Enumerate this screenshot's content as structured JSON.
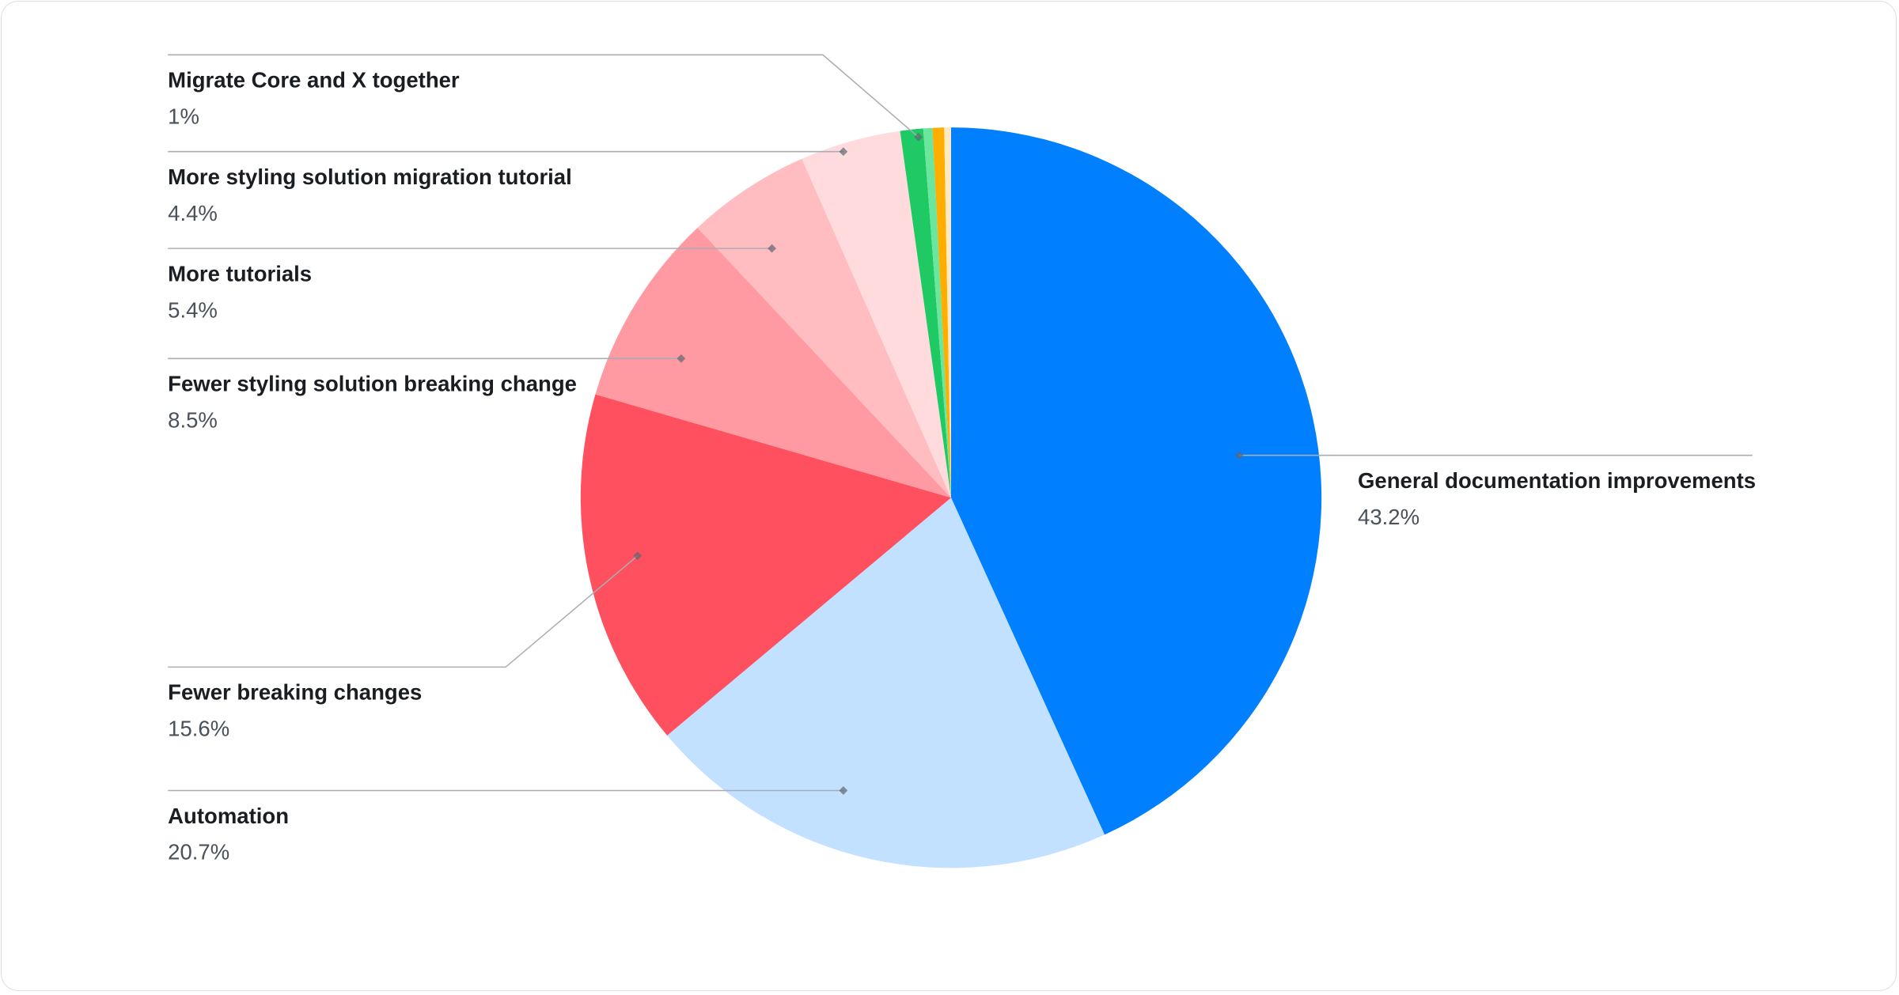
{
  "chart_data": {
    "type": "pie",
    "start_angle": "top",
    "direction": "clockwise",
    "slices": [
      {
        "name": "General documentation improvements",
        "value": 43.2,
        "label": "43.2%",
        "color": "#0080FF"
      },
      {
        "name": "Automation",
        "value": 20.7,
        "label": "20.7%",
        "color": "#C2E0FF"
      },
      {
        "name": "Fewer breaking changes",
        "value": 15.6,
        "label": "15.6%",
        "color": "#FF505F"
      },
      {
        "name": "Fewer styling solution breaking change",
        "value": 8.5,
        "label": "8.5%",
        "color": "#FF99A2"
      },
      {
        "name": "More tutorials",
        "value": 5.4,
        "label": "5.4%",
        "color": "#FFBDC2"
      },
      {
        "name": "More styling solution migration tutorial",
        "value": 4.4,
        "label": "4.4%",
        "color": "#FFDBDE"
      },
      {
        "name": "Migrate Core and X together",
        "value": 1,
        "label": "1%",
        "color": "#1FC964"
      },
      {
        "name": "",
        "value": 0.4,
        "label": "",
        "color": "#6AE79C"
      },
      {
        "name": "",
        "value": 0.5,
        "label": "",
        "color": "#FFAE00"
      },
      {
        "name": "",
        "value": 0.3,
        "label": "",
        "color": "#FFE9BF"
      }
    ]
  }
}
